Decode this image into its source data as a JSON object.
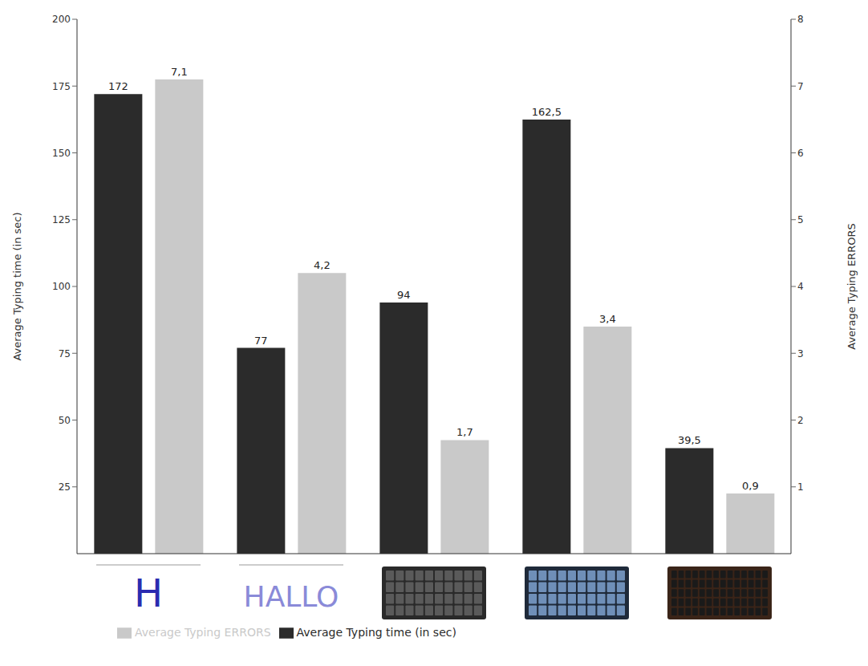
{
  "chart_data": {
    "type": "bar",
    "categories": [
      "H",
      "HALLO",
      null,
      null,
      null
    ],
    "series": [
      {
        "name": "Average Typing time (in sec)",
        "color": "#2b2b2b",
        "values": [
          172,
          77,
          94,
          162.5,
          39.5
        ],
        "value_labels": [
          "172",
          "77",
          "94",
          "162,5",
          "39,5"
        ]
      },
      {
        "name": "Average Typing ERRORS",
        "color": "#c9c9c9",
        "axis": "y2",
        "values": [
          7.1,
          4.2,
          1.7,
          3.4,
          0.9
        ],
        "value_labels": [
          "7,1",
          "4,2",
          "1,7",
          "3,4",
          "0,9"
        ]
      }
    ],
    "ylabel": "Average Typing time (in sec)",
    "y2label": "Average Typing ERRORS",
    "ylim": [
      0,
      200
    ],
    "yticks": [
      25,
      50,
      75,
      100,
      125,
      150,
      175,
      200
    ],
    "y2lim": [
      0,
      8
    ],
    "y2ticks": [
      1,
      2,
      3,
      4,
      5,
      6,
      7,
      8
    ],
    "data_labels": true,
    "legend": "bottom",
    "grid": false
  }
}
